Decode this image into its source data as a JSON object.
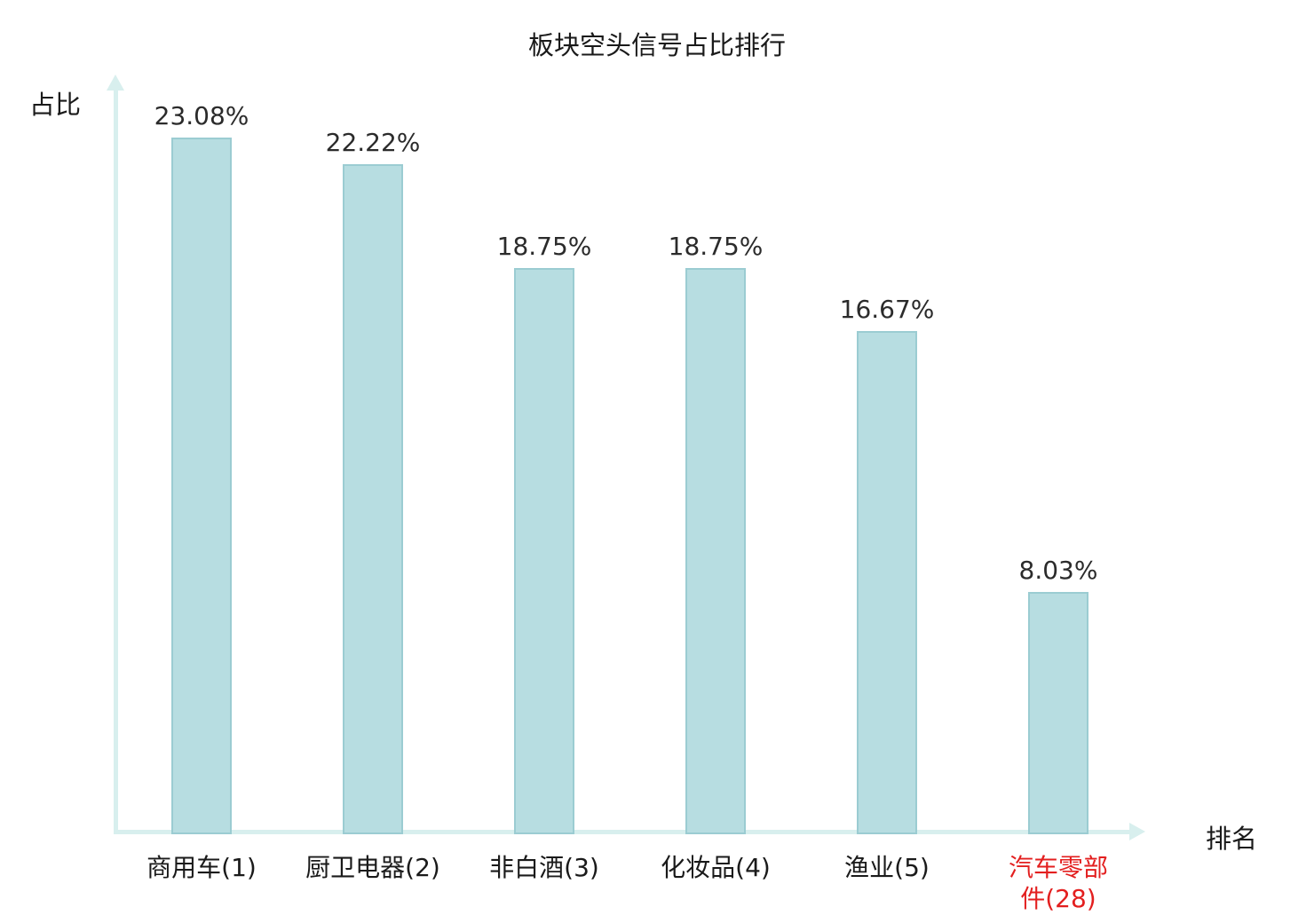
{
  "title": "板块空头信号占比排行",
  "axes": {
    "y_label": "占比",
    "x_label": "排名"
  },
  "chart_data": {
    "type": "bar",
    "title": "板块空头信号占比排行",
    "xlabel": "排名",
    "ylabel": "占比",
    "categories": [
      "商用车(1)",
      "厨卫电器(2)",
      "非白酒(3)",
      "化妆品(4)",
      "渔业(5)",
      "汽车零部件(28)"
    ],
    "values": [
      23.08,
      22.22,
      18.75,
      18.75,
      16.67,
      8.03
    ],
    "value_labels": [
      "23.08%",
      "22.22%",
      "18.75%",
      "18.75%",
      "16.67%",
      "8.03%"
    ],
    "highlight_index": 5,
    "ylim": [
      0,
      25
    ],
    "grid": false,
    "legend": "none",
    "bar_color": "#b7dde1",
    "bar_border_color": "#9bccd2",
    "axis_color": "#d8efee",
    "label_color": "#2b2b2b",
    "highlight_label_color": "#e31f1f"
  }
}
